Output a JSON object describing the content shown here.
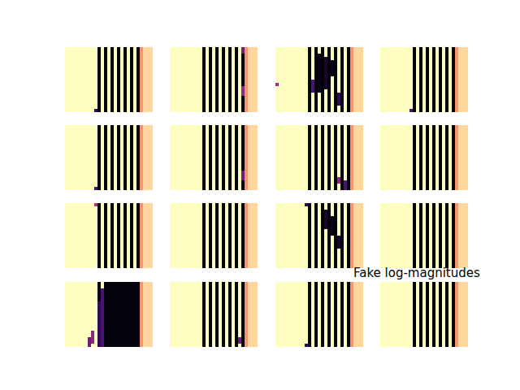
{
  "chart_data": {
    "type": "heatmap_grid",
    "title": "Fake log-magnitudes",
    "zlim": [
      0,
      1
    ],
    "tick_labels": false,
    "panels": [
      {
        "columns": [
          1,
          1,
          1,
          1,
          1,
          1,
          1,
          1,
          1,
          1,
          0,
          1,
          0,
          1,
          0,
          1,
          0,
          1,
          0,
          1,
          0,
          1,
          0,
          0.88,
          0.96,
          0.96,
          0.96
        ],
        "patches": [
          [
            19,
            9,
            1,
            1,
            0.2
          ]
        ]
      },
      {
        "columns": [
          1,
          1,
          1,
          1,
          1,
          1,
          1,
          1,
          1,
          1,
          0,
          1,
          0,
          1,
          0,
          1,
          0,
          1,
          0,
          1,
          0,
          1,
          0,
          0.88,
          0.96,
          0.96,
          0.96
        ],
        "patches": [
          [
            0,
            22,
            2,
            1,
            0.4
          ],
          [
            12,
            22,
            3,
            1,
            0.5
          ]
        ]
      },
      {
        "columns": [
          1,
          1,
          1,
          1,
          1,
          1,
          1,
          1,
          1,
          1,
          0,
          1,
          0,
          1,
          0,
          1,
          0,
          1,
          0,
          1,
          0,
          1,
          0,
          0.88,
          0.96,
          0.96,
          0.96
        ],
        "patches": [
          [
            2,
            13,
            12,
            1,
            0.05
          ],
          [
            3,
            15,
            10,
            1,
            0.1
          ],
          [
            4,
            17,
            5,
            1,
            0.05
          ],
          [
            10,
            11,
            4,
            1,
            0.3
          ],
          [
            11,
            0,
            1,
            1,
            0.55
          ],
          [
            14,
            19,
            4,
            1,
            0.2
          ]
        ]
      },
      {
        "columns": [
          1,
          1,
          1,
          1,
          1,
          1,
          1,
          1,
          1,
          1,
          0,
          1,
          0,
          1,
          0,
          1,
          0,
          1,
          0,
          1,
          0,
          1,
          0,
          0.88,
          0.96,
          0.96,
          0.96
        ],
        "patches": [
          [
            19,
            9,
            1,
            1,
            0.3
          ]
        ]
      },
      {
        "columns": [
          1,
          1,
          1,
          1,
          1,
          1,
          1,
          1,
          1,
          1,
          0,
          1,
          0,
          1,
          0,
          1,
          0,
          1,
          0,
          1,
          0,
          1,
          0,
          0.88,
          0.96,
          0.96,
          0.96
        ],
        "patches": [
          [
            19,
            9,
            1,
            1,
            0.3
          ]
        ]
      },
      {
        "columns": [
          1,
          1,
          1,
          1,
          1,
          1,
          1,
          1,
          1,
          1,
          0,
          1,
          0,
          1,
          0,
          1,
          0,
          1,
          0,
          1,
          0,
          1,
          0,
          0.88,
          0.96,
          0.96,
          0.96
        ],
        "patches": [
          [
            14,
            22,
            3,
            1,
            0.4
          ]
        ]
      },
      {
        "columns": [
          1,
          1,
          1,
          1,
          1,
          1,
          1,
          1,
          1,
          1,
          0,
          1,
          0,
          1,
          0,
          1,
          0,
          1,
          0,
          1,
          0,
          1,
          0,
          0.88,
          0.96,
          0.96,
          0.96
        ],
        "patches": [
          [
            17,
            21,
            3,
            1,
            0.3
          ],
          [
            16,
            19,
            2,
            1,
            0.5
          ]
        ]
      },
      {
        "columns": [
          1,
          1,
          1,
          1,
          1,
          1,
          1,
          1,
          1,
          1,
          0,
          1,
          0,
          1,
          0,
          1,
          0,
          1,
          0,
          1,
          0,
          1,
          0,
          0.88,
          0.96,
          0.96,
          0.96
        ],
        "patches": []
      },
      {
        "columns": [
          1,
          1,
          1,
          1,
          1,
          1,
          1,
          1,
          1,
          1,
          0,
          1,
          0,
          1,
          0,
          1,
          0,
          1,
          0,
          1,
          0,
          1,
          0,
          0.88,
          0.96,
          0.96,
          0.96
        ],
        "patches": [
          [
            0,
            9,
            1,
            1,
            0.6
          ]
        ]
      },
      {
        "columns": [
          1,
          1,
          1,
          1,
          1,
          1,
          1,
          1,
          1,
          1,
          0,
          1,
          0,
          1,
          0,
          1,
          0,
          1,
          0,
          1,
          0,
          1,
          0,
          0.88,
          0.96,
          0.96,
          0.96
        ],
        "patches": []
      },
      {
        "columns": [
          1,
          1,
          1,
          1,
          1,
          1,
          1,
          1,
          1,
          1,
          0,
          1,
          0,
          1,
          0,
          1,
          0,
          1,
          0,
          1,
          0,
          1,
          0,
          0.88,
          0.96,
          0.96,
          0.96
        ],
        "patches": [
          [
            0,
            9,
            1,
            1,
            0.2
          ],
          [
            2,
            15,
            6,
            1,
            0.1
          ],
          [
            4,
            17,
            6,
            1,
            0.05
          ],
          [
            10,
            19,
            4,
            1,
            0.1
          ]
        ]
      },
      {
        "columns": [
          1,
          1,
          1,
          1,
          1,
          1,
          1,
          1,
          1,
          1,
          0,
          1,
          0,
          1,
          0,
          1,
          0,
          1,
          0,
          1,
          0,
          1,
          0,
          0.88,
          0.96,
          0.96,
          0.96
        ],
        "patches": []
      },
      {
        "columns": [
          1,
          1,
          1,
          1,
          1,
          1,
          1,
          1,
          1,
          1,
          0,
          1,
          0,
          1,
          0,
          1,
          0,
          1,
          0,
          1,
          0,
          1,
          0,
          0.88,
          0.96,
          0.96,
          0.96
        ],
        "patches": [
          [
            0,
            12,
            20,
            11,
            0.02
          ],
          [
            2,
            11,
            18,
            1,
            0.3
          ],
          [
            6,
            10,
            14,
            1,
            0.2
          ],
          [
            15,
            8,
            4,
            1,
            0.5
          ],
          [
            17,
            7,
            3,
            1,
            0.4
          ]
        ]
      },
      {
        "columns": [
          1,
          1,
          1,
          1,
          1,
          1,
          1,
          1,
          1,
          1,
          0,
          1,
          0,
          1,
          0,
          1,
          0,
          1,
          0,
          1,
          0,
          1,
          0,
          0.88,
          0.96,
          0.96,
          0.96
        ],
        "patches": [
          [
            17,
            21,
            2,
            1,
            0.4
          ]
        ]
      },
      {
        "columns": [
          1,
          1,
          1,
          1,
          1,
          1,
          1,
          1,
          1,
          1,
          0,
          1,
          0,
          1,
          0,
          1,
          0,
          1,
          0,
          1,
          0,
          1,
          0,
          0.88,
          0.96,
          0.96,
          0.96
        ],
        "patches": [
          [
            19,
            9,
            1,
            1,
            0.2
          ]
        ]
      },
      {
        "columns": [
          1,
          1,
          1,
          1,
          1,
          1,
          1,
          1,
          1,
          1,
          0,
          1,
          0,
          1,
          0,
          1,
          0,
          1,
          0,
          1,
          0,
          1,
          0,
          0.88,
          0.96,
          0.96,
          0.96
        ],
        "patches": []
      }
    ]
  }
}
